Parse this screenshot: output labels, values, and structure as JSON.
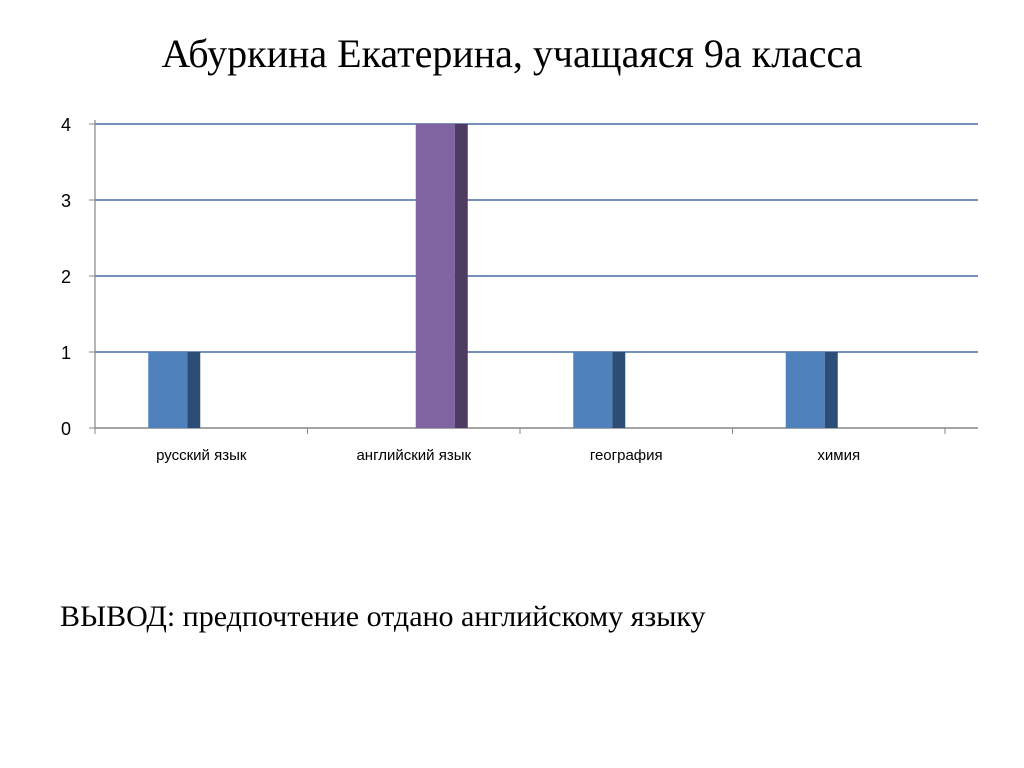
{
  "title": "Абуркина Екатерина, учащаяся 9а  класса",
  "conclusion": "ВЫВОД: предпочтение отдано английскому языку",
  "colors": {
    "blue": "#4f81bd",
    "blue_side": "#2c4d75",
    "purple": "#8064a2",
    "purple_side": "#4d3b62",
    "grid": "#4a6fa0",
    "axis": "#868686"
  },
  "chart_data": {
    "type": "bar",
    "categories": [
      "русский язык",
      "английский язык",
      "география",
      "химия"
    ],
    "series": [
      {
        "color": "#4f81bd",
        "values": [
          1,
          0,
          1,
          1
        ]
      },
      {
        "color": "#8064a2",
        "values": [
          0,
          4,
          0,
          0
        ]
      }
    ],
    "ylim": [
      0,
      4
    ],
    "yticks": [
      0,
      1,
      2,
      3,
      4
    ],
    "grid": true,
    "xlabel": "",
    "ylabel": ""
  }
}
